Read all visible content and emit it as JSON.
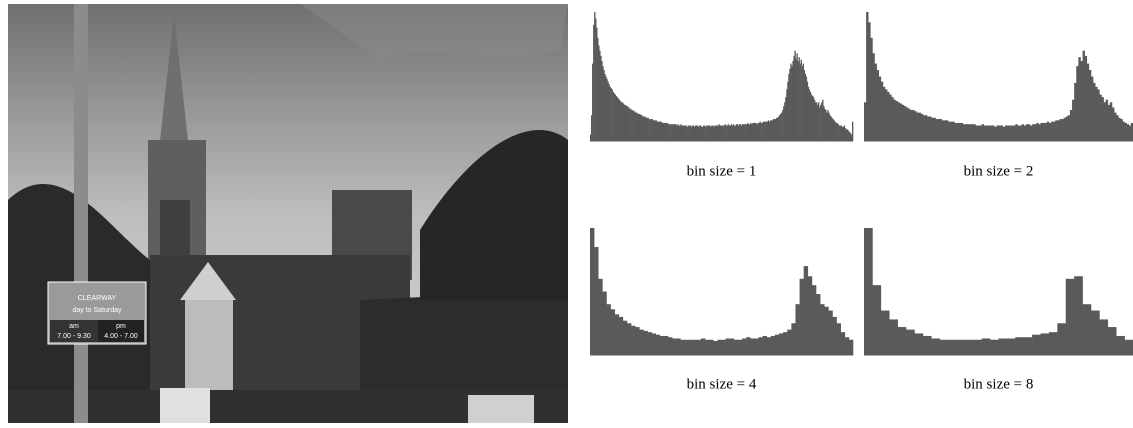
{
  "photo_sign": [
    "CLEARWAY",
    "day to Saturday",
    "am",
    "pm",
    "7.00 - 9.30",
    "4.00 - 7.00"
  ],
  "chart_data": [
    {
      "type": "histogram",
      "title": "bin size = 1",
      "color": "#5a5a5a",
      "values": [
        5,
        20,
        60,
        90,
        100,
        95,
        88,
        80,
        74,
        70,
        66,
        62,
        58,
        55,
        52,
        50,
        48,
        46,
        44,
        42,
        41,
        40,
        38,
        37,
        36,
        35,
        34,
        33,
        32,
        31,
        30,
        30,
        29,
        28,
        28,
        27,
        27,
        26,
        25,
        25,
        24,
        24,
        23,
        23,
        22,
        22,
        21,
        21,
        21,
        20,
        20,
        19,
        19,
        19,
        18,
        18,
        18,
        17,
        17,
        17,
        17,
        16,
        16,
        16,
        16,
        15,
        15,
        15,
        15,
        15,
        14,
        14,
        14,
        14,
        14,
        14,
        13,
        13,
        13,
        13,
        13,
        13,
        13,
        13,
        12,
        13,
        12,
        12,
        13,
        12,
        12,
        12,
        12,
        12,
        11,
        12,
        12,
        12,
        11,
        12,
        12,
        11,
        12,
        12,
        12,
        11,
        12,
        12,
        11,
        11,
        12,
        12,
        11,
        12,
        12,
        12,
        12,
        11,
        12,
        12,
        11,
        12,
        12,
        12,
        12,
        13,
        12,
        12,
        12,
        12,
        12,
        13,
        12,
        12,
        13,
        12,
        12,
        13,
        12,
        13,
        12,
        12,
        13,
        13,
        12,
        13,
        13,
        12,
        13,
        13,
        13,
        13,
        13,
        14,
        13,
        13,
        14,
        13,
        14,
        14,
        14,
        14,
        13,
        14,
        14,
        15,
        14,
        14,
        15,
        15,
        15,
        15,
        15,
        16,
        15,
        16,
        16,
        16,
        17,
        17,
        17,
        18,
        18,
        19,
        20,
        21,
        22,
        24,
        27,
        30,
        34,
        40,
        46,
        52,
        56,
        60,
        58,
        62,
        66,
        70,
        64,
        68,
        62,
        65,
        60,
        63,
        58,
        60,
        55,
        52,
        50,
        46,
        42,
        40,
        38,
        36,
        35,
        34,
        32,
        30,
        30,
        28,
        30,
        26,
        28,
        30,
        32,
        27,
        25,
        24,
        22,
        24,
        22,
        20,
        19,
        18,
        17,
        16,
        15,
        14,
        14,
        13,
        12,
        12,
        12,
        11,
        11,
        12,
        10,
        9,
        9,
        8,
        7,
        6,
        5,
        15
      ]
    },
    {
      "type": "histogram",
      "title": "bin size = 2",
      "color": "#5a5a5a",
      "values": [
        30,
        100,
        92,
        80,
        68,
        60,
        55,
        50,
        46,
        42,
        40,
        38,
        36,
        34,
        32,
        31,
        30,
        29,
        28,
        27,
        26,
        25,
        24,
        24,
        23,
        22,
        22,
        21,
        20,
        20,
        19,
        19,
        18,
        18,
        17,
        17,
        17,
        16,
        16,
        16,
        15,
        15,
        15,
        14,
        14,
        14,
        14,
        13,
        13,
        13,
        13,
        13,
        13,
        12,
        12,
        12,
        13,
        12,
        12,
        12,
        12,
        12,
        11,
        12,
        12,
        12,
        11,
        12,
        12,
        12,
        12,
        12,
        13,
        12,
        12,
        13,
        12,
        13,
        13,
        12,
        13,
        13,
        14,
        13,
        14,
        14,
        14,
        15,
        14,
        15,
        15,
        16,
        16,
        17,
        17,
        18,
        19,
        20,
        24,
        32,
        45,
        58,
        65,
        62,
        70,
        66,
        60,
        55,
        50,
        45,
        42,
        40,
        36,
        34,
        30,
        32,
        28,
        30,
        26,
        22,
        20,
        18,
        17,
        15,
        14,
        13,
        12,
        14
      ]
    },
    {
      "type": "histogram",
      "title": "bin size = 4",
      "color": "#5a5a5a",
      "values": [
        100,
        85,
        60,
        50,
        40,
        36,
        32,
        30,
        27,
        25,
        23,
        22,
        20,
        19,
        18,
        17,
        16,
        15,
        15,
        14,
        13,
        13,
        12,
        12,
        12,
        12,
        12,
        13,
        12,
        12,
        11,
        12,
        12,
        13,
        13,
        12,
        12,
        13,
        14,
        13,
        13,
        14,
        15,
        14,
        15,
        16,
        17,
        18,
        20,
        25,
        40,
        60,
        70,
        62,
        55,
        48,
        40,
        38,
        35,
        30,
        25,
        18,
        14,
        12
      ]
    },
    {
      "type": "histogram",
      "title": "bin size = 8",
      "color": "#5a5a5a",
      "values": [
        100,
        55,
        35,
        28,
        22,
        20,
        17,
        15,
        13,
        12,
        12,
        12,
        12,
        12,
        13,
        12,
        13,
        13,
        14,
        14,
        16,
        17,
        18,
        25,
        60,
        62,
        40,
        35,
        28,
        22,
        15,
        12
      ]
    }
  ]
}
